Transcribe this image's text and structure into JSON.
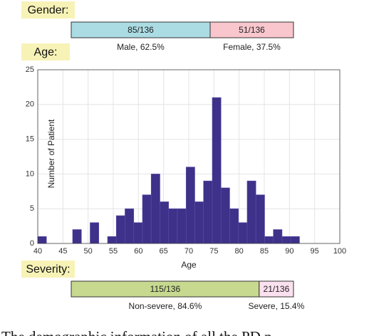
{
  "chart_data": [
    {
      "type": "stacked-bar",
      "title": "Gender:",
      "xlim": [
        0,
        136
      ],
      "series": [
        {
          "name": "Male, 62.5%",
          "color": "#abdce4",
          "values": [
            85
          ],
          "value_labels": [
            "85/136"
          ]
        },
        {
          "name": "Female, 37.5%",
          "color": "#f8c6cc",
          "values": [
            51
          ],
          "value_labels": [
            "51/136"
          ]
        }
      ]
    },
    {
      "type": "histogram",
      "title": "Age:",
      "xlabel": "Age",
      "ylabel": "Number of Patient",
      "color": "#3d3189",
      "grid": true,
      "bins": [
        40,
        41.73,
        43.47,
        45.2,
        46.93,
        48.67,
        50.4,
        52.13,
        53.87,
        55.6,
        57.33,
        59.07,
        60.8,
        62.53,
        64.27,
        66,
        67.73,
        69.47,
        71.2,
        72.93,
        74.67,
        76.4,
        78.13,
        79.87,
        81.6,
        83.33,
        85.07,
        86.8,
        88.53,
        90.27,
        92
      ],
      "values": [
        1,
        0,
        0,
        0,
        2,
        0,
        3,
        0,
        1,
        4,
        5,
        3,
        7,
        10,
        6,
        5,
        5,
        11,
        6,
        9,
        21,
        8,
        5,
        3,
        9,
        7,
        1,
        2,
        1,
        1
      ],
      "xlim": [
        40,
        100
      ],
      "xticks": [
        40,
        45,
        50,
        55,
        60,
        65,
        70,
        75,
        80,
        85,
        90,
        95,
        100
      ],
      "ylim": [
        0,
        25
      ],
      "yticks": [
        0,
        5,
        10,
        15,
        20,
        25
      ]
    },
    {
      "type": "stacked-bar",
      "title": "Severity:",
      "xlim": [
        0,
        136
      ],
      "series": [
        {
          "name": "Non-severe, 84.6%",
          "color": "#c6d98f",
          "values": [
            115
          ],
          "value_labels": [
            "115/136"
          ]
        },
        {
          "name": "Severe, 15.4%",
          "color": "#fbe1ef",
          "values": [
            21
          ],
          "value_labels": [
            "21/136"
          ]
        }
      ]
    }
  ],
  "caption": "The demographic information of all the PD p"
}
